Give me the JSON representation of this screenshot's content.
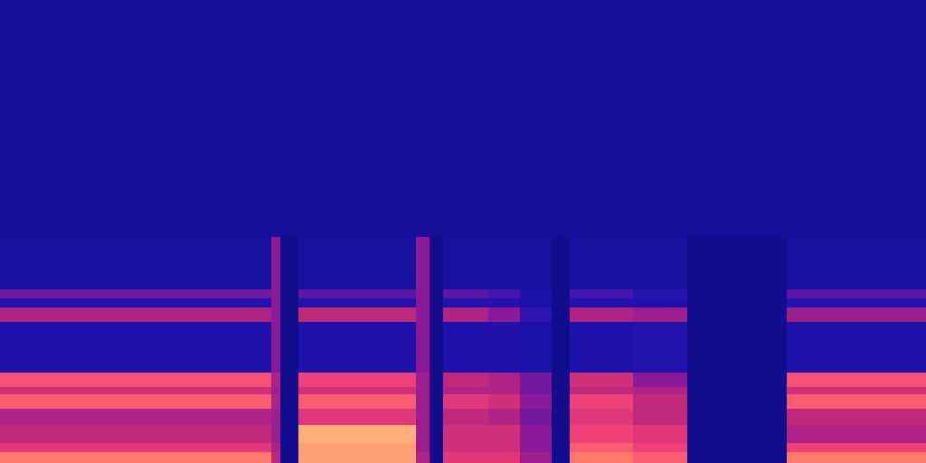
{
  "chart_data": {
    "type": "heatmap",
    "tick_labels": false,
    "xlim": [
      0,
      1024
    ],
    "ylim": [
      0,
      512
    ],
    "zlim": [
      0,
      100
    ],
    "x": [
      0,
      300,
      310,
      330,
      460,
      475,
      490,
      540,
      575,
      610,
      630,
      700,
      760,
      870,
      1024
    ],
    "y": [
      0,
      12,
      22,
      42,
      60,
      76,
      84,
      100,
      156,
      172,
      182,
      192,
      250,
      512
    ],
    "z": [
      [
        85,
        60,
        5,
        90,
        55,
        5,
        70,
        70,
        50,
        5,
        85,
        80,
        5,
        85
      ],
      [
        70,
        55,
        5,
        90,
        50,
        5,
        65,
        65,
        45,
        5,
        80,
        75,
        5,
        75
      ],
      [
        60,
        50,
        5,
        92,
        50,
        5,
        65,
        65,
        45,
        5,
        75,
        70,
        5,
        55
      ],
      [
        55,
        50,
        5,
        70,
        50,
        5,
        60,
        55,
        40,
        5,
        70,
        60,
        5,
        60
      ],
      [
        80,
        55,
        5,
        80,
        50,
        5,
        70,
        65,
        45,
        5,
        75,
        60,
        5,
        80
      ],
      [
        65,
        50,
        5,
        65,
        50,
        5,
        55,
        55,
        40,
        5,
        60,
        55,
        5,
        65
      ],
      [
        78,
        55,
        5,
        75,
        50,
        5,
        60,
        55,
        40,
        5,
        65,
        45,
        5,
        78
      ],
      [
        15,
        45,
        5,
        15,
        45,
        5,
        15,
        15,
        12,
        5,
        15,
        18,
        5,
        15
      ],
      [
        55,
        45,
        5,
        60,
        45,
        5,
        55,
        45,
        25,
        5,
        55,
        50,
        5,
        50
      ],
      [
        18,
        45,
        5,
        18,
        45,
        5,
        18,
        18,
        12,
        5,
        18,
        15,
        5,
        18
      ],
      [
        40,
        45,
        5,
        35,
        45,
        5,
        35,
        30,
        15,
        5,
        30,
        20,
        5,
        35
      ],
      [
        10,
        45,
        5,
        10,
        45,
        5,
        10,
        10,
        10,
        5,
        10,
        10,
        5,
        10
      ],
      [
        8,
        8,
        8,
        8,
        8,
        8,
        8,
        8,
        8,
        8,
        8,
        8,
        8,
        8
      ]
    ]
  }
}
